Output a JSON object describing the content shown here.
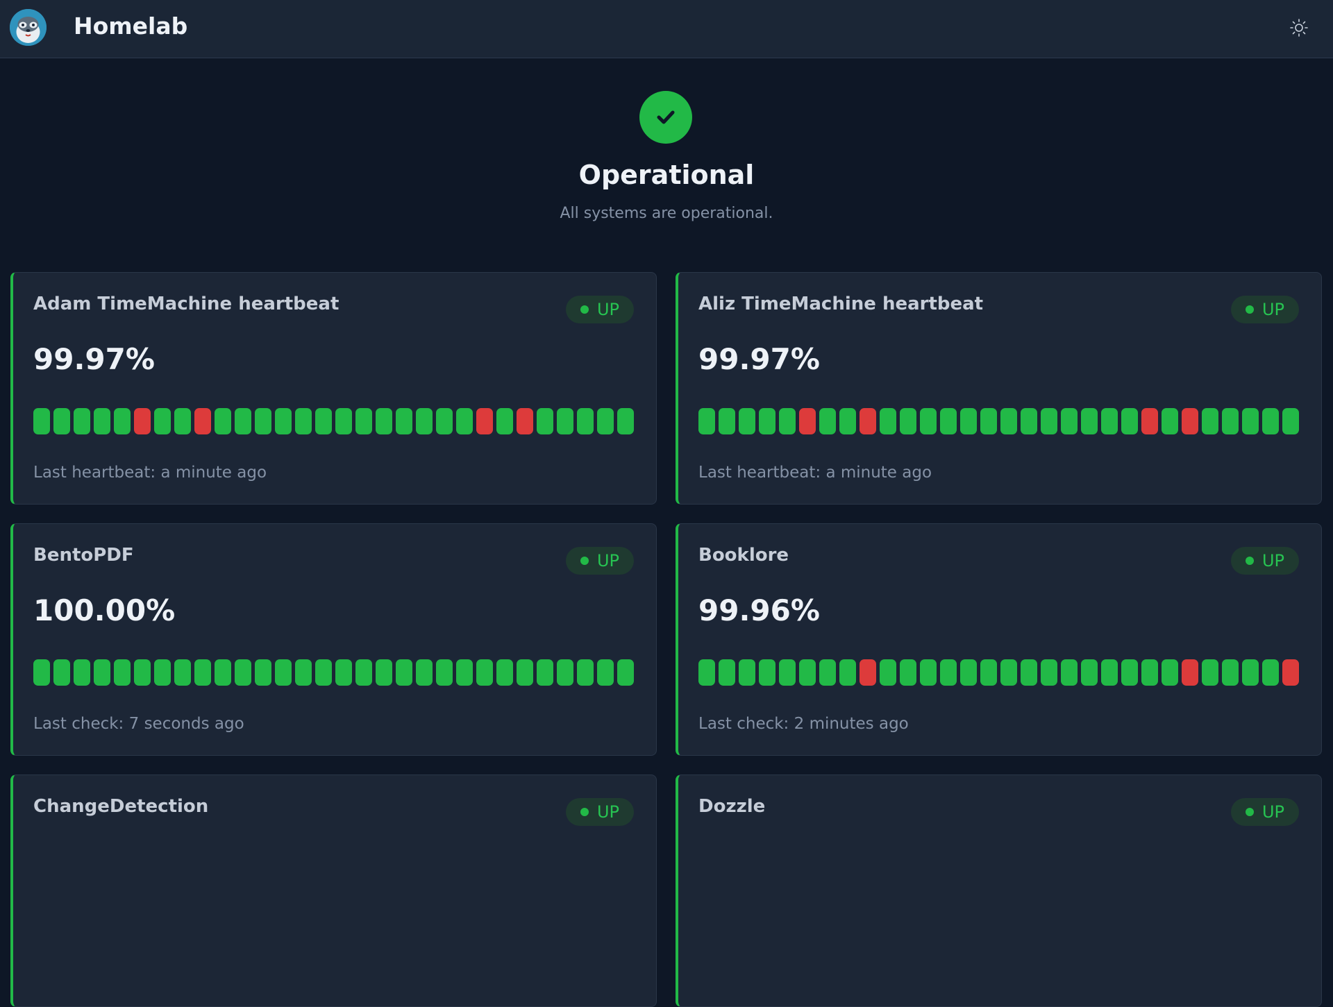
{
  "header": {
    "title": "Homelab",
    "logo_icon": "raccoon-mascot-logo",
    "theme_toggle_icon": "sun-icon"
  },
  "overall": {
    "icon": "check-icon",
    "title": "Operational",
    "subtitle": "All systems are operational."
  },
  "colors": {
    "up": "#22b947",
    "down": "#dd3b3b",
    "background": "#0e1726",
    "card": "#1c2636"
  },
  "monitors": [
    {
      "name": "Adam TimeMachine heartbeat",
      "status": "UP",
      "uptime": "99.97%",
      "last": "Last heartbeat: a minute ago",
      "beats": [
        1,
        1,
        1,
        1,
        1,
        0,
        1,
        1,
        0,
        1,
        1,
        1,
        1,
        1,
        1,
        1,
        1,
        1,
        1,
        1,
        1,
        1,
        0,
        1,
        0,
        1,
        1,
        1,
        1,
        1
      ]
    },
    {
      "name": "Aliz TimeMachine heartbeat",
      "status": "UP",
      "uptime": "99.97%",
      "last": "Last heartbeat: a minute ago",
      "beats": [
        1,
        1,
        1,
        1,
        1,
        0,
        1,
        1,
        0,
        1,
        1,
        1,
        1,
        1,
        1,
        1,
        1,
        1,
        1,
        1,
        1,
        1,
        0,
        1,
        0,
        1,
        1,
        1,
        1,
        1
      ]
    },
    {
      "name": "BentoPDF",
      "status": "UP",
      "uptime": "100.00%",
      "last": "Last check: 7 seconds ago",
      "beats": [
        1,
        1,
        1,
        1,
        1,
        1,
        1,
        1,
        1,
        1,
        1,
        1,
        1,
        1,
        1,
        1,
        1,
        1,
        1,
        1,
        1,
        1,
        1,
        1,
        1,
        1,
        1,
        1,
        1,
        1
      ]
    },
    {
      "name": "Booklore",
      "status": "UP",
      "uptime": "99.96%",
      "last": "Last check: 2 minutes ago",
      "beats": [
        1,
        1,
        1,
        1,
        1,
        1,
        1,
        1,
        0,
        1,
        1,
        1,
        1,
        1,
        1,
        1,
        1,
        1,
        1,
        1,
        1,
        1,
        1,
        1,
        0,
        1,
        1,
        1,
        1,
        0
      ]
    },
    {
      "name": "ChangeDetection",
      "status": "UP",
      "uptime": "",
      "last": "",
      "beats": []
    },
    {
      "name": "Dozzle",
      "status": "UP",
      "uptime": "",
      "last": "",
      "beats": []
    }
  ]
}
